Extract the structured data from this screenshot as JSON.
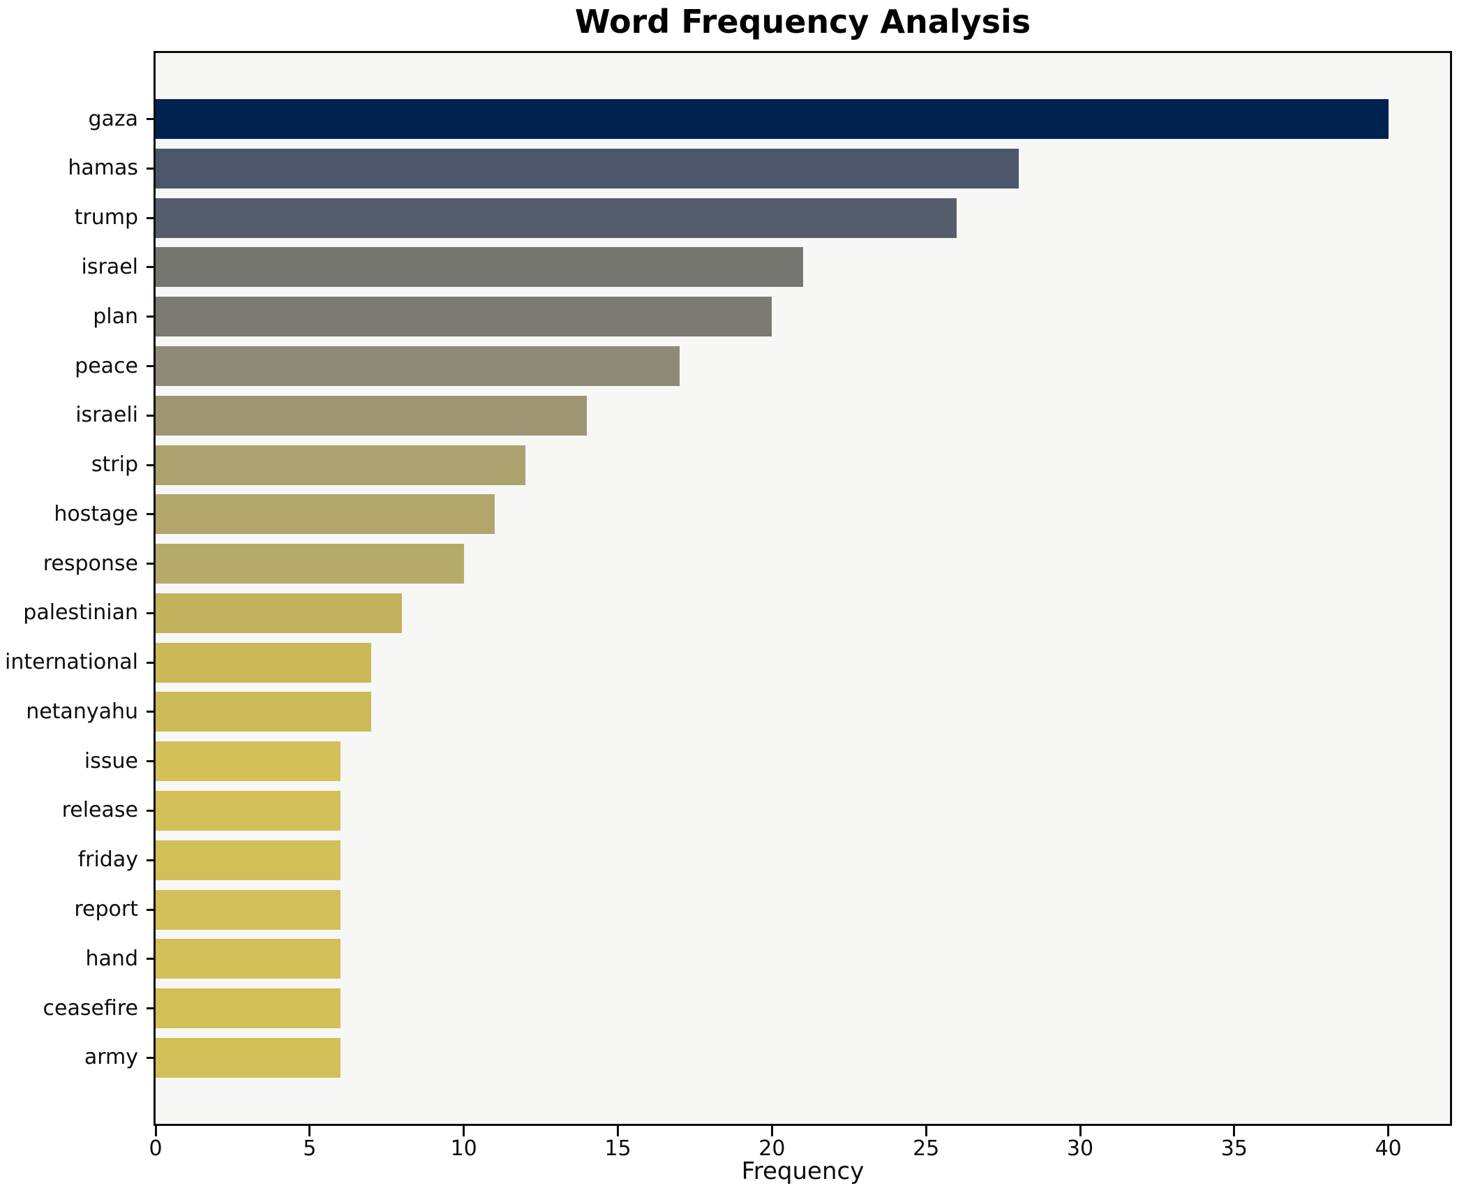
{
  "title": "Word Frequency Analysis",
  "chart_data": {
    "type": "bar",
    "orientation": "horizontal",
    "title": "Word Frequency Analysis",
    "xlabel": "Frequency",
    "ylabel": "",
    "xlim": [
      0,
      42
    ],
    "xticks": [
      0,
      5,
      10,
      15,
      20,
      25,
      30,
      35,
      40
    ],
    "grid": false,
    "legend": "none",
    "colormap": "cividis",
    "figure_background": "#ffffff",
    "plot_background": "#f7f7f6",
    "axis_color": "#0d0d0d",
    "categories": [
      "gaza",
      "hamas",
      "trump",
      "israel",
      "plan",
      "peace",
      "israeli",
      "strip",
      "hostage",
      "response",
      "palestinian",
      "international",
      "netanyahu",
      "issue",
      "release",
      "friday",
      "report",
      "hand",
      "ceasefire",
      "army"
    ],
    "values": [
      40,
      28,
      26,
      21,
      20,
      17,
      14,
      12,
      11,
      10,
      8,
      7,
      7,
      6,
      6,
      6,
      6,
      6,
      6,
      6
    ],
    "bar_colors": [
      "#00224e",
      "#4c566a",
      "#565d6c",
      "#767671",
      "#7b7a73",
      "#8f8a78",
      "#9e9673",
      "#ada26e",
      "#b2a66a",
      "#b6aa68",
      "#c3b25c",
      "#cbb959",
      "#ccba59",
      "#d2bf58",
      "#d2bf58",
      "#d2bf58",
      "#d2bf58",
      "#d2bf58",
      "#d2bf58",
      "#d2bf58"
    ]
  }
}
